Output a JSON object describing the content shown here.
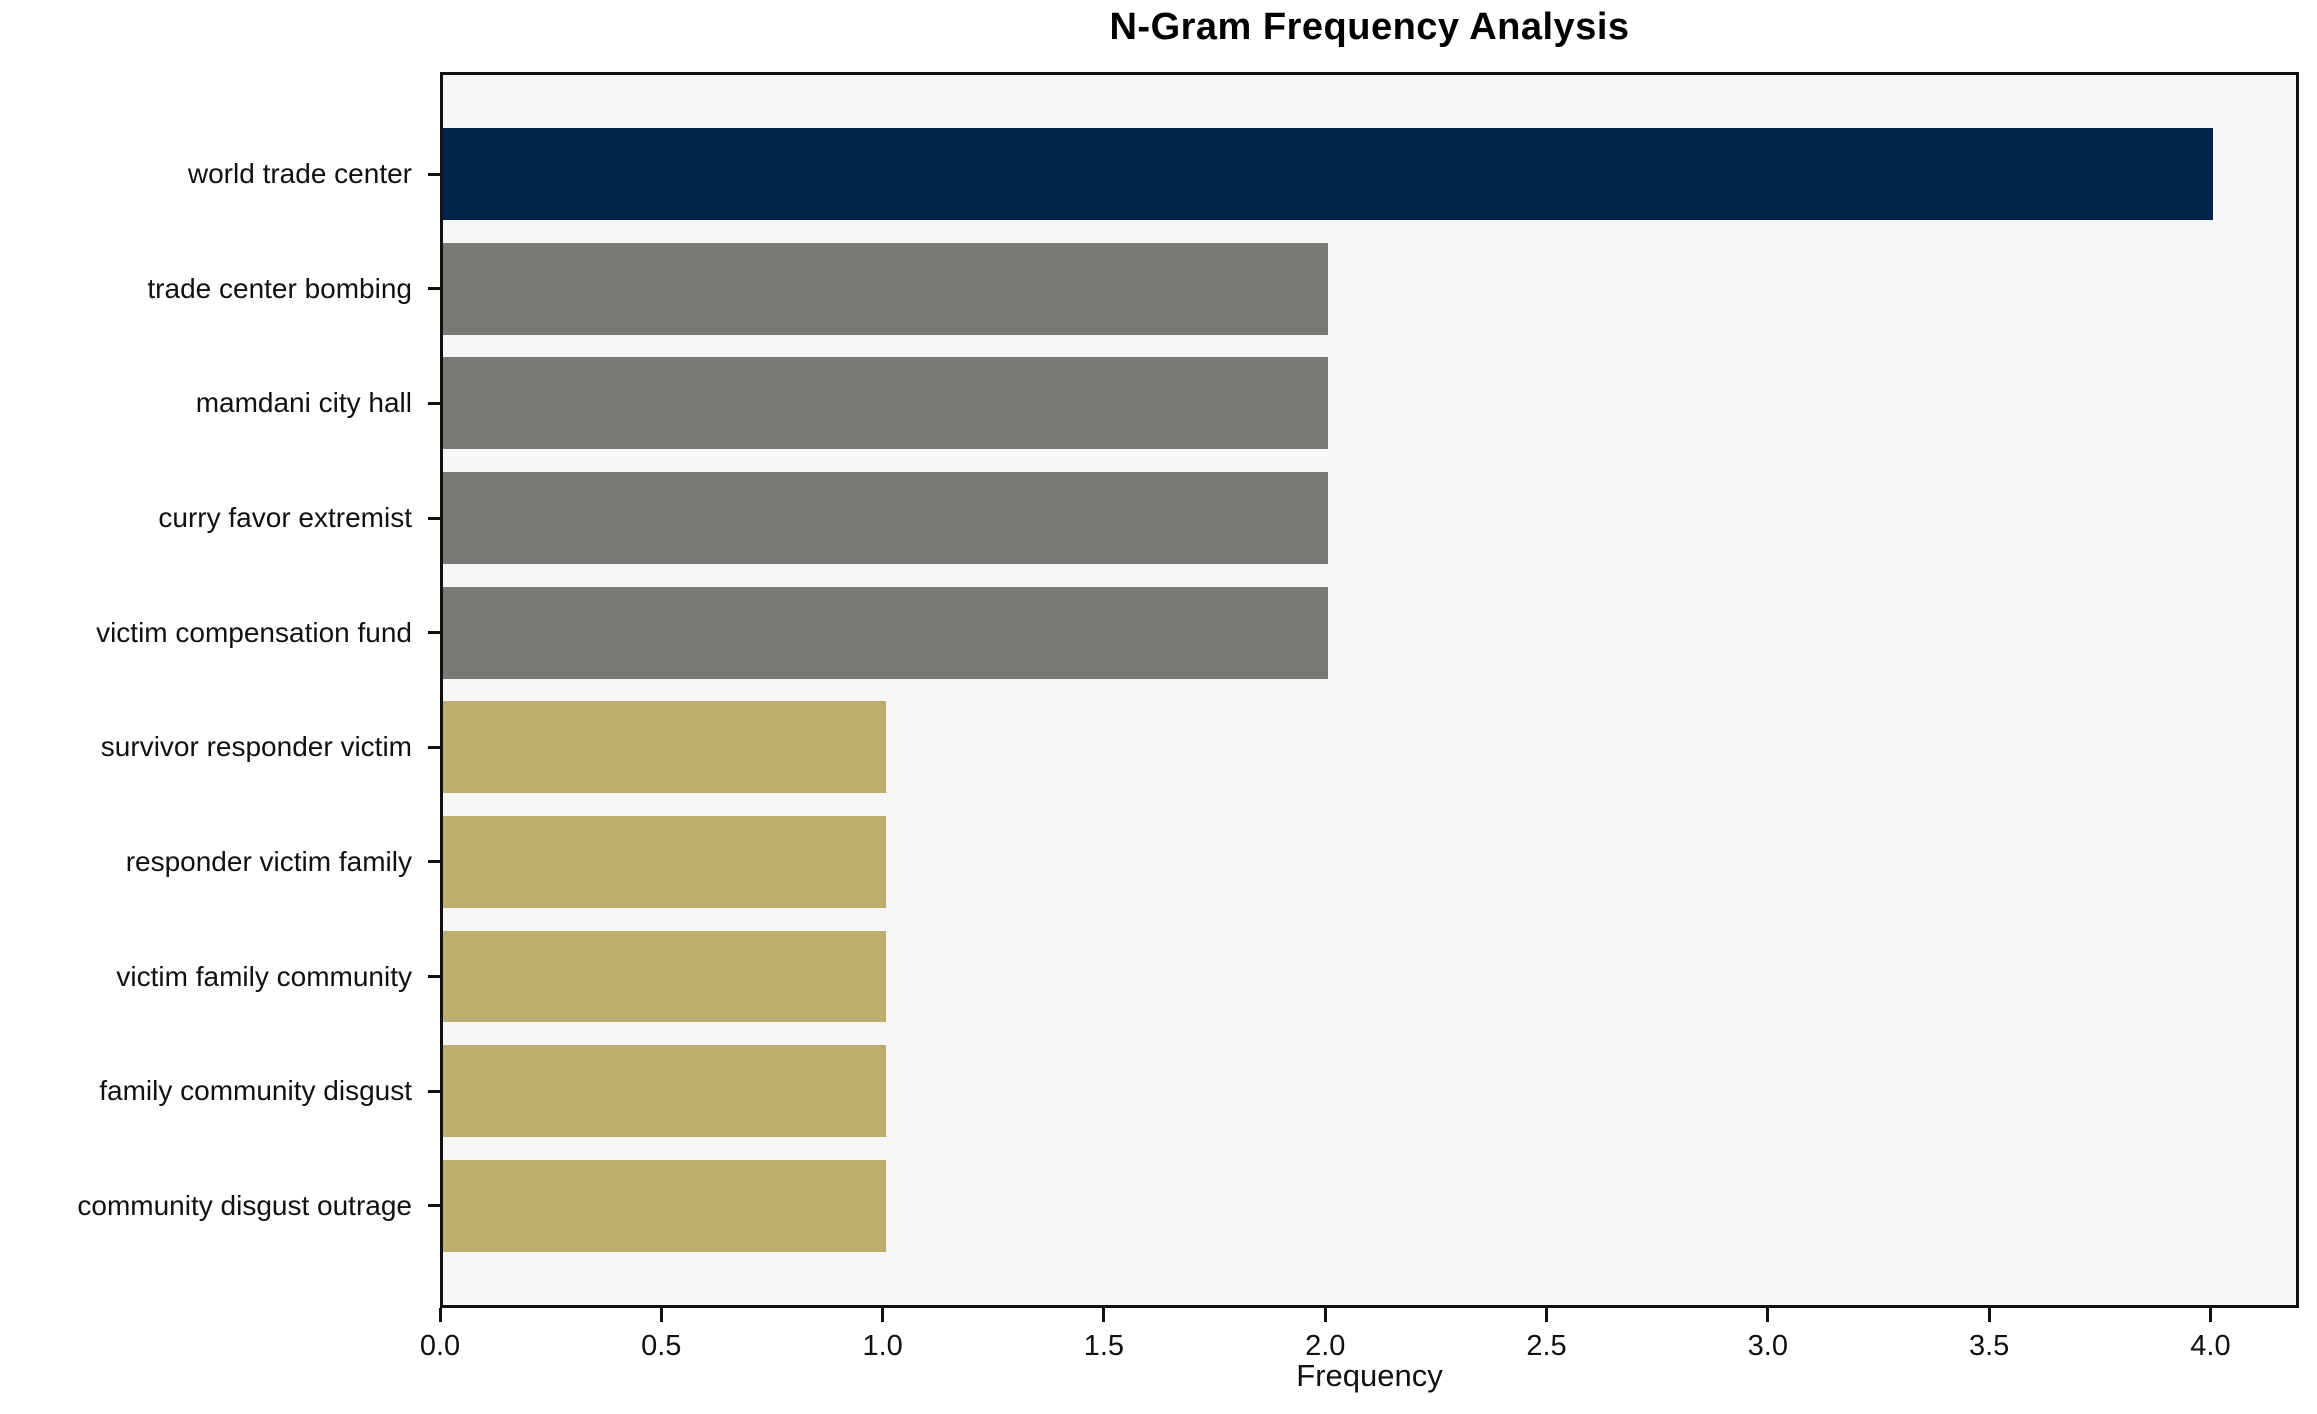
{
  "chart_data": {
    "type": "bar",
    "orientation": "horizontal",
    "title": "N-Gram Frequency Analysis",
    "xlabel": "Frequency",
    "ylabel": "",
    "categories": [
      "world trade center",
      "trade center bombing",
      "mamdani city hall",
      "curry favor extremist",
      "victim compensation fund",
      "survivor responder victim",
      "responder victim family",
      "victim family community",
      "family community disgust",
      "community disgust outrage"
    ],
    "values": [
      4,
      2,
      2,
      2,
      2,
      1,
      1,
      1,
      1,
      1
    ],
    "bar_colors": [
      "#02234C",
      "#7A7874",
      "#7A7874",
      "#7A7874",
      "#7A7874",
      "#BCAE6E",
      "#BCAE6E",
      "#BCAE6E",
      "#BCAE6E",
      "#BCAE6E"
    ],
    "xlim": [
      0,
      4.2
    ],
    "x_ticks": [
      "0.0",
      "0.5",
      "1.0",
      "1.5",
      "2.0",
      "2.5",
      "3.0",
      "3.5",
      "4.0"
    ],
    "grid": false,
    "legend": null,
    "plot_background": "#F7F7F7",
    "figure_background": "#FFFFFF",
    "colors": {
      "accent_navy": "#02234C",
      "neutral_gray": "#7A7874",
      "khaki_gold": "#BCAE6E",
      "frame": "#111111"
    }
  }
}
